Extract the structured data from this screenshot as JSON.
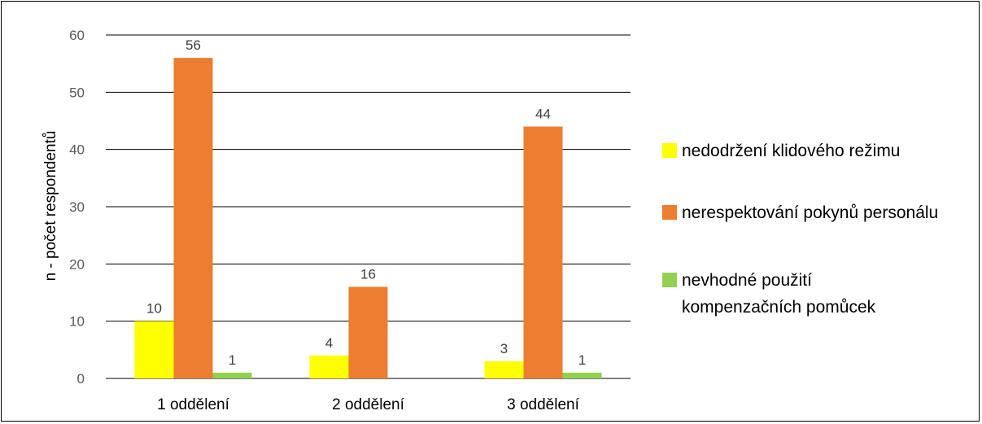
{
  "chart_data": {
    "type": "bar",
    "title": "",
    "xlabel": "",
    "ylabel": "n - počet respondentů",
    "ylim": [
      0,
      60
    ],
    "yticks": [
      0,
      10,
      20,
      30,
      40,
      50,
      60
    ],
    "grid": true,
    "legend_position": "right",
    "categories": [
      "1 oddělení",
      "2 oddělení",
      "3 oddělení"
    ],
    "series": [
      {
        "name": "nedodržení klidového režimu",
        "color": "#FFFF00",
        "values": [
          10,
          4,
          3
        ]
      },
      {
        "name": "nerespektování pokynů personálu",
        "color": "#ED7D31",
        "values": [
          56,
          16,
          44
        ]
      },
      {
        "name": "nevhodné použití kompenzačních pomůcek",
        "color": "#92D050",
        "values": [
          1,
          null,
          1
        ]
      }
    ]
  }
}
